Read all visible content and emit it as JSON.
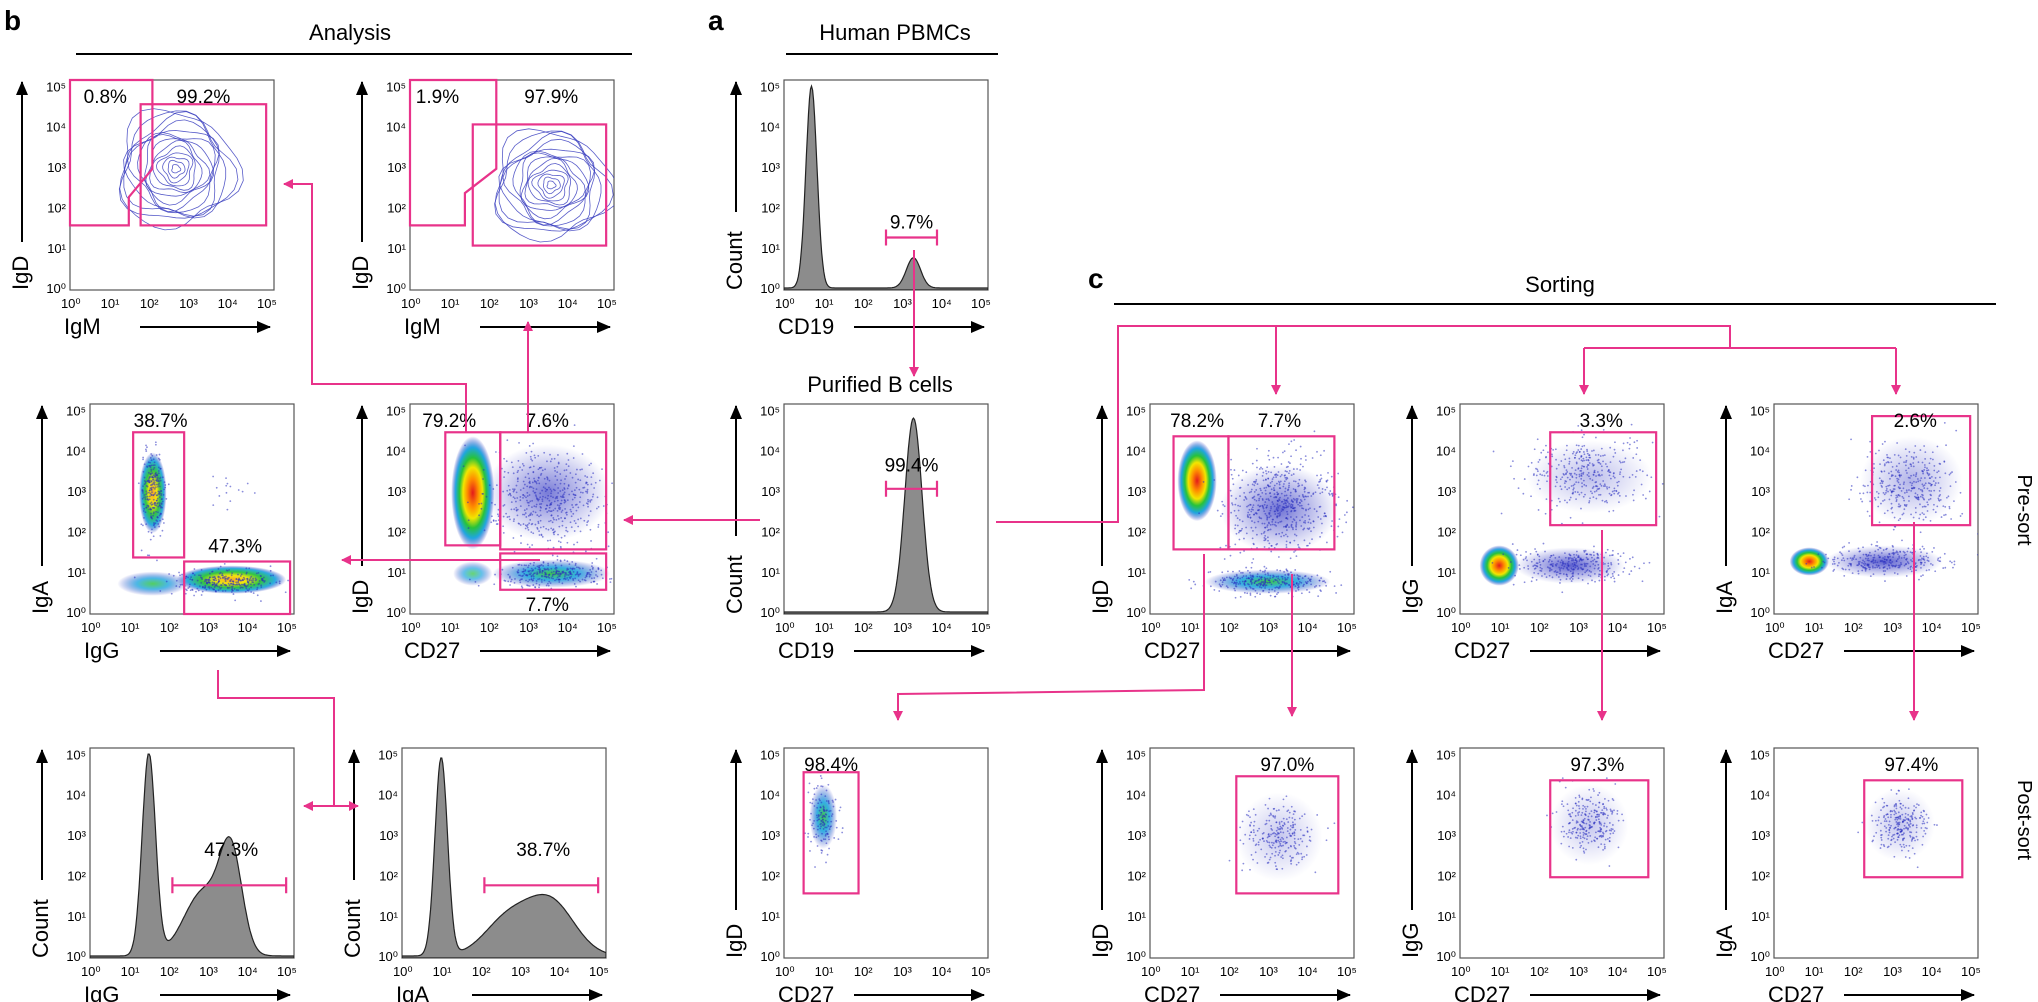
{
  "section_letters": {
    "a": "a",
    "b": "b",
    "c": "c"
  },
  "section_titles": {
    "a": "Human PBMCs",
    "b": "Analysis",
    "c": "Sorting"
  },
  "subtitle_purified": "Purified B cells",
  "row_labels": {
    "presort": "Pre-sort",
    "postsort": "Post-sort"
  },
  "tick_labels": [
    "10⁰",
    "10¹",
    "10²",
    "10³",
    "10⁴",
    "10⁵"
  ],
  "colors": {
    "gate": "#e8338a",
    "contour": "#3b3fc0",
    "histogram_fill": "#8c8c8c"
  },
  "panels": [
    {
      "id": "a1",
      "type": "histogram",
      "x_label": "CD19",
      "y_label": "Count",
      "gates": [
        "9.7%"
      ]
    },
    {
      "id": "a2",
      "type": "histogram",
      "x_label": "CD19",
      "y_label": "Count",
      "gates": [
        "99.4%"
      ]
    },
    {
      "id": "a3",
      "type": "density",
      "x_label": "CD27",
      "y_label": "IgD",
      "gates": [
        "98.4%"
      ]
    },
    {
      "id": "b1",
      "type": "contour",
      "x_label": "IgM",
      "y_label": "IgD",
      "gates": [
        "0.8%",
        "99.2%"
      ]
    },
    {
      "id": "b2",
      "type": "contour",
      "x_label": "IgM",
      "y_label": "IgD",
      "gates": [
        "1.9%",
        "97.9%"
      ]
    },
    {
      "id": "b3",
      "type": "density",
      "x_label": "IgG",
      "y_label": "IgA",
      "gates": [
        "38.7%",
        "47.3%"
      ]
    },
    {
      "id": "b4",
      "type": "density",
      "x_label": "CD27",
      "y_label": "IgD",
      "gates": [
        "79.2%",
        "7.6%",
        "7.7%"
      ]
    },
    {
      "id": "b5",
      "type": "histogram",
      "x_label": "IgG",
      "y_label": "Count",
      "gates": [
        "47.3%"
      ]
    },
    {
      "id": "b6",
      "type": "histogram",
      "x_label": "IgA",
      "y_label": "Count",
      "gates": [
        "38.7%"
      ]
    },
    {
      "id": "c1",
      "type": "density",
      "x_label": "CD27",
      "y_label": "IgD",
      "gates": [
        "78.2%",
        "7.7%"
      ]
    },
    {
      "id": "c2",
      "type": "density",
      "x_label": "CD27",
      "y_label": "IgG",
      "gates": [
        "3.3%"
      ]
    },
    {
      "id": "c3",
      "type": "density",
      "x_label": "CD27",
      "y_label": "IgA",
      "gates": [
        "2.6%"
      ]
    },
    {
      "id": "c4",
      "type": "density",
      "x_label": "CD27",
      "y_label": "IgD",
      "gates": [
        "97.0%"
      ]
    },
    {
      "id": "c5",
      "type": "density",
      "x_label": "CD27",
      "y_label": "IgG",
      "gates": [
        "97.3%"
      ]
    },
    {
      "id": "c6",
      "type": "density",
      "x_label": "CD27",
      "y_label": "IgA",
      "gates": [
        "97.4%"
      ]
    }
  ]
}
